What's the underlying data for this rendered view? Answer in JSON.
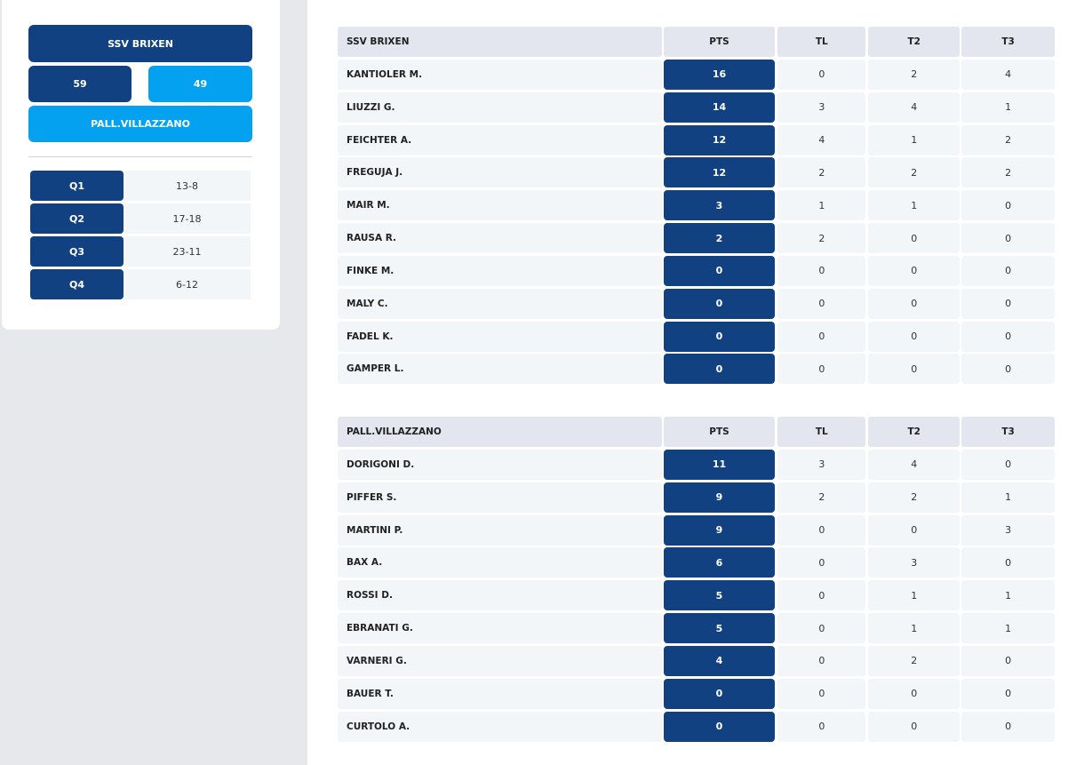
{
  "scoreboard": {
    "home_name": "SSV BRIXEN",
    "home_score": "59",
    "away_score": "49",
    "away_name": "PALL.VILLAZZANO",
    "quarters": [
      {
        "label": "Q1",
        "score": "13-8"
      },
      {
        "label": "Q2",
        "score": "17-18"
      },
      {
        "label": "Q3",
        "score": "23-11"
      },
      {
        "label": "Q4",
        "score": "6-12"
      }
    ]
  },
  "tables": [
    {
      "team": "SSV BRIXEN",
      "columns": [
        "PTS",
        "TL",
        "T2",
        "T3"
      ],
      "rows": [
        {
          "name": "KANTIOLER M.",
          "pts": "16",
          "tl": "0",
          "t2": "2",
          "t3": "4"
        },
        {
          "name": "LIUZZI G.",
          "pts": "14",
          "tl": "3",
          "t2": "4",
          "t3": "1"
        },
        {
          "name": "FEICHTER A.",
          "pts": "12",
          "tl": "4",
          "t2": "1",
          "t3": "2"
        },
        {
          "name": "FREGUJA J.",
          "pts": "12",
          "tl": "2",
          "t2": "2",
          "t3": "2"
        },
        {
          "name": "MAIR M.",
          "pts": "3",
          "tl": "1",
          "t2": "1",
          "t3": "0"
        },
        {
          "name": "RAUSA R.",
          "pts": "2",
          "tl": "2",
          "t2": "0",
          "t3": "0"
        },
        {
          "name": "FINKE M.",
          "pts": "0",
          "tl": "0",
          "t2": "0",
          "t3": "0"
        },
        {
          "name": "MALY C.",
          "pts": "0",
          "tl": "0",
          "t2": "0",
          "t3": "0"
        },
        {
          "name": "FADEL K.",
          "pts": "0",
          "tl": "0",
          "t2": "0",
          "t3": "0"
        },
        {
          "name": "GAMPER L.",
          "pts": "0",
          "tl": "0",
          "t2": "0",
          "t3": "0"
        }
      ]
    },
    {
      "team": "PALL.VILLAZZANO",
      "columns": [
        "PTS",
        "TL",
        "T2",
        "T3"
      ],
      "rows": [
        {
          "name": "DORIGONI D.",
          "pts": "11",
          "tl": "3",
          "t2": "4",
          "t3": "0"
        },
        {
          "name": "PIFFER S.",
          "pts": "9",
          "tl": "2",
          "t2": "2",
          "t3": "1"
        },
        {
          "name": "MARTINI P.",
          "pts": "9",
          "tl": "0",
          "t2": "0",
          "t3": "3"
        },
        {
          "name": "BAX A.",
          "pts": "6",
          "tl": "0",
          "t2": "3",
          "t3": "0"
        },
        {
          "name": "ROSSI D.",
          "pts": "5",
          "tl": "0",
          "t2": "1",
          "t3": "1"
        },
        {
          "name": "EBRANATI G.",
          "pts": "5",
          "tl": "0",
          "t2": "1",
          "t3": "1"
        },
        {
          "name": "VARNERI G.",
          "pts": "4",
          "tl": "0",
          "t2": "2",
          "t3": "0"
        },
        {
          "name": "BAUER T.",
          "pts": "0",
          "tl": "0",
          "t2": "0",
          "t3": "0"
        },
        {
          "name": "CURTOLO A.",
          "pts": "0",
          "tl": "0",
          "t2": "0",
          "t3": "0"
        }
      ]
    }
  ]
}
